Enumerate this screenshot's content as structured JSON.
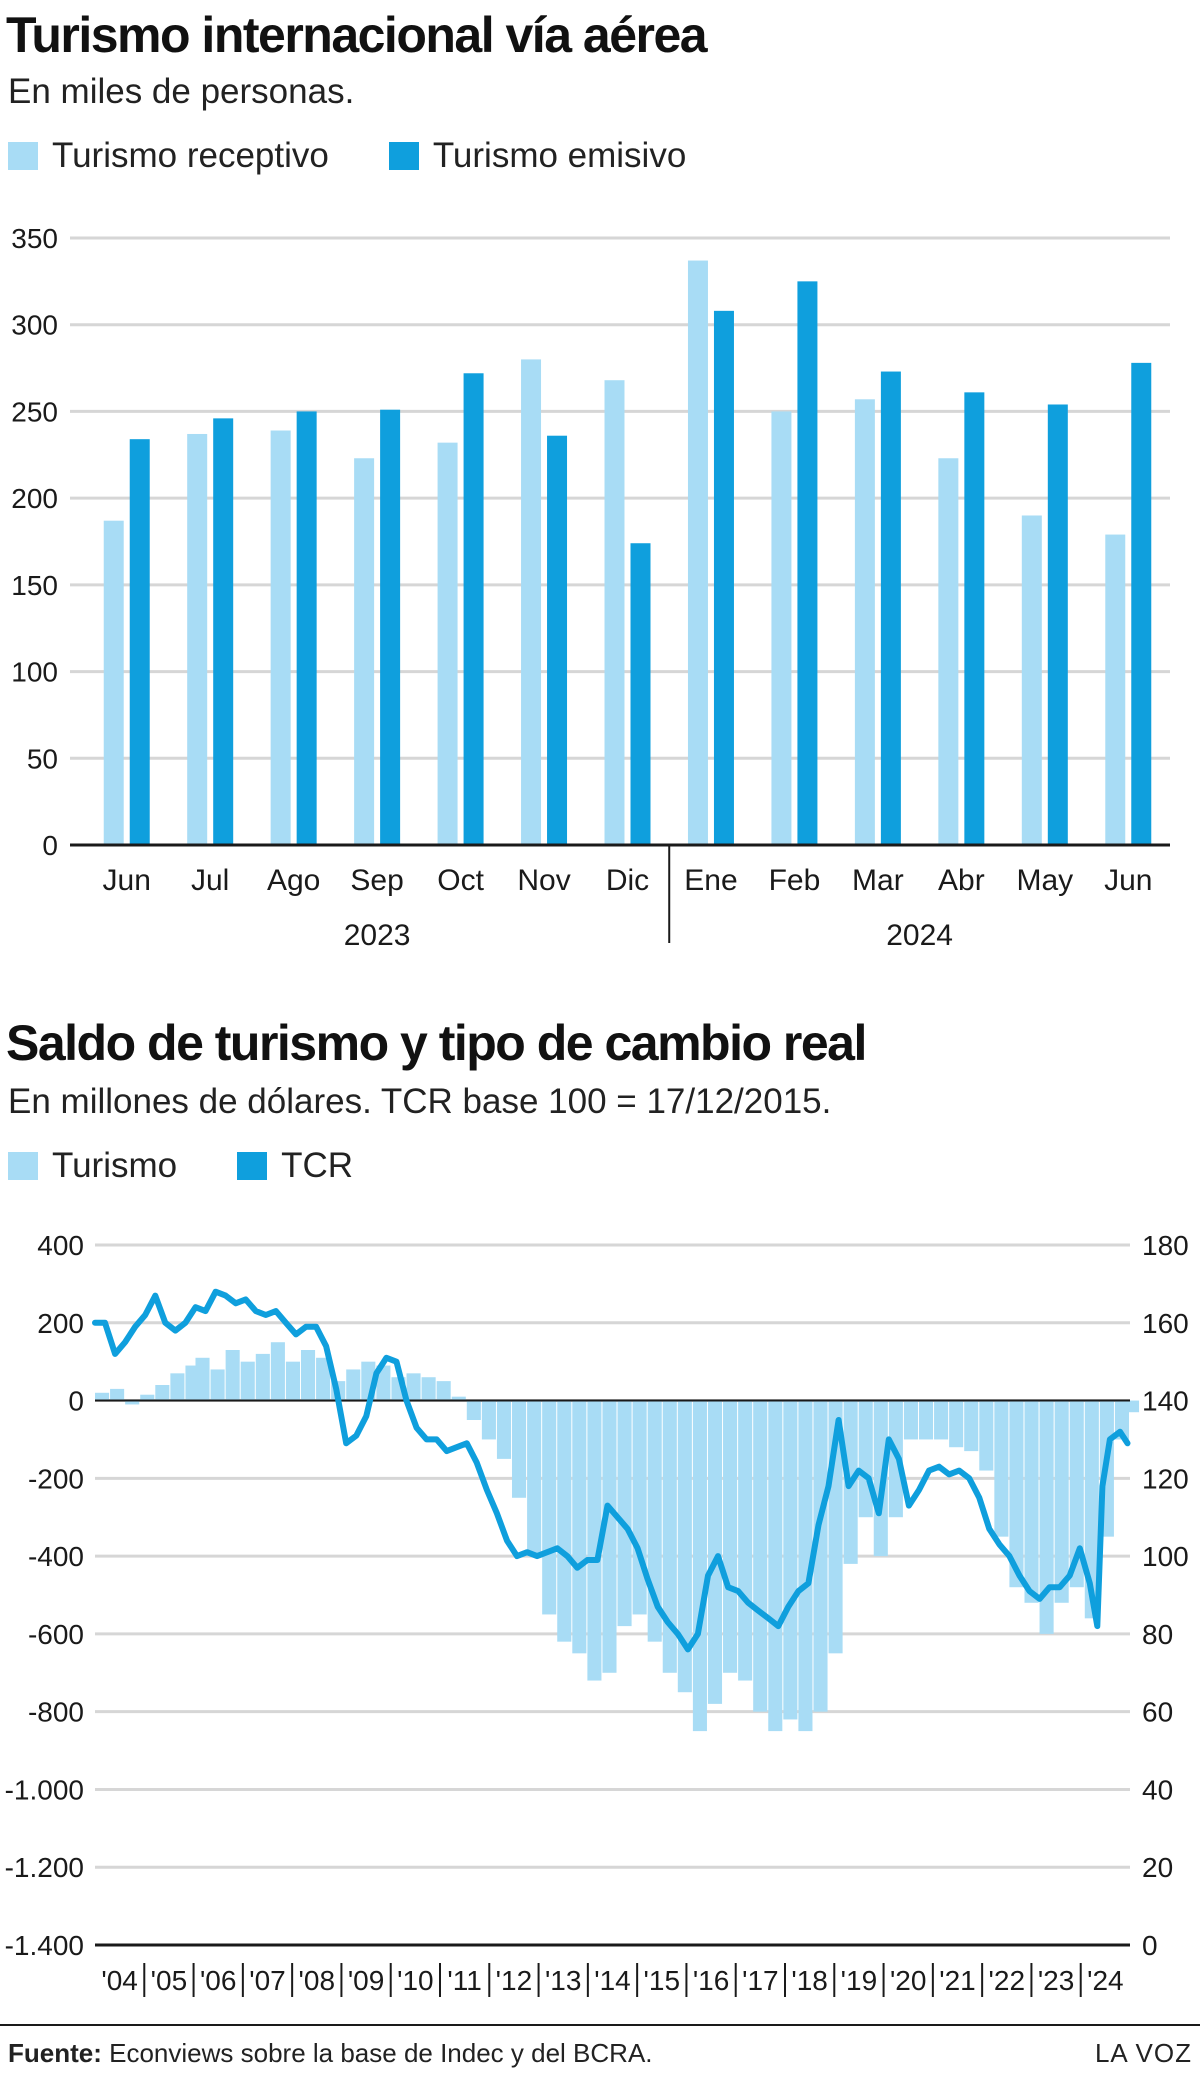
{
  "colors": {
    "light": "#a8dcf5",
    "dark": "#0f9fdd",
    "grid": "#d6d6d6",
    "axis": "#1a1a1a",
    "text": "#1a1a1a"
  },
  "chart1": {
    "title": "Turismo internacional vía aérea",
    "subtitle": "En miles de personas.",
    "legend": [
      {
        "label": "Turismo receptivo",
        "color": "#a8dcf5"
      },
      {
        "label": "Turismo emisivo",
        "color": "#0f9fdd"
      }
    ],
    "year_labels": [
      "2023",
      "2024"
    ]
  },
  "chart2": {
    "title": "Saldo de turismo y tipo de cambio real",
    "subtitle": "En millones de dólares. TCR base 100 = 17/12/2015.",
    "legend": [
      {
        "label": "Turismo",
        "color": "#a8dcf5"
      },
      {
        "label": "TCR",
        "color": "#0f9fdd"
      }
    ]
  },
  "footer": {
    "source_label": "Fuente:",
    "source_text": " Econviews sobre la base de Indec y del BCRA.",
    "brand": "LA VOZ"
  },
  "chart_data": [
    {
      "type": "bar",
      "title": "Turismo internacional vía aérea",
      "subtitle": "En miles de personas.",
      "categories": [
        "Jun",
        "Jul",
        "Ago",
        "Sep",
        "Oct",
        "Nov",
        "Dic",
        "Ene",
        "Feb",
        "Mar",
        "Abr",
        "May",
        "Jun"
      ],
      "category_years": [
        "2023",
        "2023",
        "2023",
        "2023",
        "2023",
        "2023",
        "2023",
        "2024",
        "2024",
        "2024",
        "2024",
        "2024",
        "2024"
      ],
      "series": [
        {
          "name": "Turismo receptivo",
          "values": [
            187,
            237,
            239,
            223,
            232,
            280,
            268,
            337,
            250,
            257,
            223,
            190,
            179
          ]
        },
        {
          "name": "Turismo emisivo",
          "values": [
            234,
            246,
            250,
            251,
            272,
            236,
            174,
            308,
            325,
            273,
            261,
            254,
            278
          ]
        }
      ],
      "ylim": [
        0,
        350
      ],
      "yticks": [
        0,
        50,
        100,
        150,
        200,
        250,
        300,
        350
      ],
      "grid": true,
      "legend_position": "top-left"
    },
    {
      "type": "bar+line",
      "title": "Saldo de turismo y tipo de cambio real",
      "subtitle": "En millones de dólares. TCR base 100 = 17/12/2015.",
      "x_labels": [
        "'04",
        "'05",
        "'06",
        "'07",
        "'08",
        "'09",
        "'10",
        "'11",
        "'12",
        "'13",
        "'14",
        "'15",
        "'16",
        "'17",
        "'18",
        "'19",
        "'20",
        "'21",
        "'22",
        "'23",
        "'24"
      ],
      "x_range": [
        2004,
        2024.6
      ],
      "left_axis": {
        "ticks": [
          400,
          200,
          0,
          -200,
          -400,
          -600,
          -800,
          -1000,
          -1200,
          -1400
        ],
        "tick_labels": [
          "400",
          "200",
          "0",
          "-200",
          "-400",
          "-600",
          "-800",
          "-1.000",
          "-1.200",
          "-1.400"
        ],
        "ylim": [
          -1400,
          400
        ]
      },
      "right_axis": {
        "ticks": [
          180,
          160,
          140,
          120,
          100,
          80,
          60,
          40,
          20,
          0
        ],
        "tick_labels": [
          "180",
          "160",
          "140",
          "120",
          "100",
          "80",
          "60",
          "40",
          "20",
          "0"
        ],
        "ylim": [
          0,
          180
        ]
      },
      "series": [
        {
          "name": "Turismo",
          "kind": "bar",
          "axis": "left",
          "points": [
            [
              2004.0,
              20
            ],
            [
              2004.3,
              30
            ],
            [
              2004.6,
              -10
            ],
            [
              2004.9,
              15
            ],
            [
              2005.2,
              40
            ],
            [
              2005.5,
              70
            ],
            [
              2005.8,
              90
            ],
            [
              2006.0,
              110
            ],
            [
              2006.3,
              80
            ],
            [
              2006.6,
              130
            ],
            [
              2006.9,
              100
            ],
            [
              2007.2,
              120
            ],
            [
              2007.5,
              150
            ],
            [
              2007.8,
              100
            ],
            [
              2008.1,
              130
            ],
            [
              2008.4,
              110
            ],
            [
              2008.7,
              50
            ],
            [
              2009.0,
              80
            ],
            [
              2009.3,
              100
            ],
            [
              2009.6,
              90
            ],
            [
              2009.9,
              60
            ],
            [
              2010.2,
              70
            ],
            [
              2010.5,
              60
            ],
            [
              2010.8,
              50
            ],
            [
              2011.1,
              10
            ],
            [
              2011.4,
              -50
            ],
            [
              2011.7,
              -100
            ],
            [
              2012.0,
              -150
            ],
            [
              2012.3,
              -250
            ],
            [
              2012.6,
              -400
            ],
            [
              2012.9,
              -550
            ],
            [
              2013.2,
              -620
            ],
            [
              2013.5,
              -650
            ],
            [
              2013.8,
              -720
            ],
            [
              2014.1,
              -700
            ],
            [
              2014.4,
              -580
            ],
            [
              2014.7,
              -550
            ],
            [
              2015.0,
              -620
            ],
            [
              2015.3,
              -700
            ],
            [
              2015.6,
              -750
            ],
            [
              2015.9,
              -850
            ],
            [
              2016.2,
              -780
            ],
            [
              2016.5,
              -700
            ],
            [
              2016.8,
              -720
            ],
            [
              2017.1,
              -800
            ],
            [
              2017.4,
              -850
            ],
            [
              2017.7,
              -820
            ],
            [
              2018.0,
              -850
            ],
            [
              2018.3,
              -800
            ],
            [
              2018.6,
              -650
            ],
            [
              2018.9,
              -420
            ],
            [
              2019.2,
              -300
            ],
            [
              2019.5,
              -400
            ],
            [
              2019.8,
              -300
            ],
            [
              2020.1,
              -100
            ],
            [
              2020.4,
              -100
            ],
            [
              2020.7,
              -100
            ],
            [
              2021.0,
              -120
            ],
            [
              2021.3,
              -130
            ],
            [
              2021.6,
              -180
            ],
            [
              2021.9,
              -350
            ],
            [
              2022.2,
              -480
            ],
            [
              2022.5,
              -520
            ],
            [
              2022.8,
              -600
            ],
            [
              2023.1,
              -520
            ],
            [
              2023.4,
              -480
            ],
            [
              2023.7,
              -560
            ],
            [
              2024.0,
              -350
            ],
            [
              2024.3,
              -100
            ],
            [
              2024.5,
              -30
            ]
          ]
        },
        {
          "name": "TCR",
          "kind": "line",
          "axis": "right",
          "points": [
            [
              2004.0,
              160
            ],
            [
              2004.2,
              160
            ],
            [
              2004.4,
              152
            ],
            [
              2004.6,
              155
            ],
            [
              2004.8,
              159
            ],
            [
              2005.0,
              162
            ],
            [
              2005.2,
              167
            ],
            [
              2005.4,
              160
            ],
            [
              2005.6,
              158
            ],
            [
              2005.8,
              160
            ],
            [
              2006.0,
              164
            ],
            [
              2006.2,
              163
            ],
            [
              2006.4,
              168
            ],
            [
              2006.6,
              167
            ],
            [
              2006.8,
              165
            ],
            [
              2007.0,
              166
            ],
            [
              2007.2,
              163
            ],
            [
              2007.4,
              162
            ],
            [
              2007.6,
              163
            ],
            [
              2007.8,
              160
            ],
            [
              2008.0,
              157
            ],
            [
              2008.2,
              159
            ],
            [
              2008.4,
              159
            ],
            [
              2008.6,
              154
            ],
            [
              2008.8,
              143
            ],
            [
              2009.0,
              129
            ],
            [
              2009.2,
              131
            ],
            [
              2009.4,
              136
            ],
            [
              2009.6,
              147
            ],
            [
              2009.8,
              151
            ],
            [
              2010.0,
              150
            ],
            [
              2010.2,
              140
            ],
            [
              2010.4,
              133
            ],
            [
              2010.6,
              130
            ],
            [
              2010.8,
              130
            ],
            [
              2011.0,
              127
            ],
            [
              2011.2,
              128
            ],
            [
              2011.4,
              129
            ],
            [
              2011.6,
              124
            ],
            [
              2011.8,
              117
            ],
            [
              2012.0,
              111
            ],
            [
              2012.2,
              104
            ],
            [
              2012.4,
              100
            ],
            [
              2012.6,
              101
            ],
            [
              2012.8,
              100
            ],
            [
              2013.0,
              101
            ],
            [
              2013.2,
              102
            ],
            [
              2013.4,
              100
            ],
            [
              2013.6,
              97
            ],
            [
              2013.8,
              99
            ],
            [
              2014.0,
              99
            ],
            [
              2014.2,
              113
            ],
            [
              2014.4,
              110
            ],
            [
              2014.6,
              107
            ],
            [
              2014.8,
              102
            ],
            [
              2015.0,
              94
            ],
            [
              2015.2,
              87
            ],
            [
              2015.4,
              83
            ],
            [
              2015.6,
              80
            ],
            [
              2015.8,
              76
            ],
            [
              2016.0,
              80
            ],
            [
              2016.2,
              95
            ],
            [
              2016.4,
              100
            ],
            [
              2016.6,
              92
            ],
            [
              2016.8,
              91
            ],
            [
              2017.0,
              88
            ],
            [
              2017.2,
              86
            ],
            [
              2017.4,
              84
            ],
            [
              2017.6,
              82
            ],
            [
              2017.8,
              87
            ],
            [
              2018.0,
              91
            ],
            [
              2018.2,
              93
            ],
            [
              2018.4,
              108
            ],
            [
              2018.6,
              118
            ],
            [
              2018.8,
              135
            ],
            [
              2019.0,
              118
            ],
            [
              2019.2,
              122
            ],
            [
              2019.4,
              120
            ],
            [
              2019.6,
              111
            ],
            [
              2019.8,
              130
            ],
            [
              2020.0,
              125
            ],
            [
              2020.2,
              113
            ],
            [
              2020.4,
              117
            ],
            [
              2020.6,
              122
            ],
            [
              2020.8,
              123
            ],
            [
              2021.0,
              121
            ],
            [
              2021.2,
              122
            ],
            [
              2021.4,
              120
            ],
            [
              2021.6,
              115
            ],
            [
              2021.8,
              107
            ],
            [
              2022.0,
              103
            ],
            [
              2022.2,
              100
            ],
            [
              2022.4,
              95
            ],
            [
              2022.6,
              91
            ],
            [
              2022.8,
              89
            ],
            [
              2023.0,
              92
            ],
            [
              2023.2,
              92
            ],
            [
              2023.4,
              95
            ],
            [
              2023.6,
              102
            ],
            [
              2023.8,
              93
            ],
            [
              2023.95,
              82
            ],
            [
              2024.05,
              118
            ],
            [
              2024.2,
              130
            ],
            [
              2024.4,
              132
            ],
            [
              2024.55,
              129
            ]
          ]
        }
      ],
      "zero_line": true,
      "grid": true,
      "legend_position": "top-left"
    }
  ]
}
